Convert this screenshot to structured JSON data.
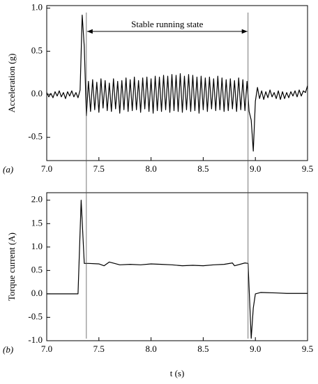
{
  "chart_data": [
    {
      "type": "line",
      "ylabel": "Acceleration (g)",
      "panel_label": "(a)",
      "color": "#000000",
      "xlim": [
        7.0,
        9.5
      ],
      "ylim": [
        -0.77,
        1.03
      ],
      "xticks": [
        {
          "value": 7.0,
          "label": "7.0"
        },
        {
          "value": 7.5,
          "label": "7.5"
        },
        {
          "value": 8.0,
          "label": "8.0"
        },
        {
          "value": 8.5,
          "label": "8.5"
        },
        {
          "value": 9.0,
          "label": "9.0"
        },
        {
          "value": 9.5,
          "label": "9.5"
        }
      ],
      "yticks": [
        {
          "value": -0.5,
          "label": "-0.5"
        },
        {
          "value": 0.0,
          "label": "0.0"
        },
        {
          "value": 0.5,
          "label": "0.5"
        },
        {
          "value": 1.0,
          "label": "1.0"
        }
      ],
      "vlines": [
        7.38,
        8.93
      ],
      "annotation": {
        "text": "Stable running state",
        "x": [
          7.38,
          8.93
        ],
        "y": 0.73
      },
      "x": [
        7.0,
        7.02,
        7.04,
        7.06,
        7.08,
        7.1,
        7.12,
        7.14,
        7.16,
        7.18,
        7.2,
        7.22,
        7.24,
        7.26,
        7.28,
        7.3,
        7.32,
        7.34,
        7.36,
        7.38,
        7.4,
        7.42,
        7.44,
        7.46,
        7.48,
        7.5,
        7.52,
        7.54,
        7.56,
        7.58,
        7.6,
        7.62,
        7.64,
        7.66,
        7.68,
        7.7,
        7.72,
        7.74,
        7.76,
        7.78,
        7.8,
        7.82,
        7.84,
        7.86,
        7.88,
        7.9,
        7.92,
        7.94,
        7.96,
        7.98,
        8.0,
        8.02,
        8.04,
        8.06,
        8.08,
        8.1,
        8.12,
        8.14,
        8.16,
        8.18,
        8.2,
        8.22,
        8.24,
        8.26,
        8.28,
        8.3,
        8.32,
        8.34,
        8.36,
        8.38,
        8.4,
        8.42,
        8.44,
        8.46,
        8.48,
        8.5,
        8.52,
        8.54,
        8.56,
        8.58,
        8.6,
        8.62,
        8.64,
        8.66,
        8.68,
        8.7,
        8.72,
        8.74,
        8.76,
        8.78,
        8.8,
        8.82,
        8.84,
        8.86,
        8.88,
        8.9,
        8.92,
        8.94,
        8.96,
        8.98,
        9.0,
        9.02,
        9.04,
        9.06,
        9.08,
        9.1,
        9.12,
        9.14,
        9.16,
        9.18,
        9.2,
        9.22,
        9.24,
        9.26,
        9.28,
        9.3,
        9.32,
        9.34,
        9.36,
        9.38,
        9.4,
        9.42,
        9.44,
        9.46,
        9.48,
        9.5
      ],
      "values": [
        0.02,
        -0.03,
        0.01,
        -0.04,
        0.03,
        -0.02,
        0.04,
        -0.03,
        0.02,
        -0.05,
        0.03,
        -0.02,
        0.04,
        -0.03,
        0.02,
        -0.04,
        0.05,
        0.92,
        0.55,
        -0.25,
        0.15,
        -0.2,
        0.17,
        -0.18,
        0.14,
        -0.21,
        0.18,
        -0.16,
        0.16,
        -0.19,
        0.13,
        -0.2,
        0.18,
        -0.17,
        0.15,
        -0.22,
        0.16,
        -0.18,
        0.19,
        -0.2,
        0.17,
        -0.19,
        0.2,
        -0.18,
        0.16,
        -0.21,
        0.19,
        -0.17,
        0.2,
        -0.2,
        0.18,
        -0.22,
        0.21,
        -0.19,
        0.2,
        -0.2,
        0.22,
        -0.18,
        0.21,
        -0.21,
        0.23,
        -0.19,
        0.22,
        -0.2,
        0.24,
        -0.21,
        0.21,
        -0.18,
        0.23,
        -0.2,
        0.22,
        -0.19,
        0.2,
        -0.22,
        0.21,
        -0.18,
        0.19,
        -0.2,
        0.2,
        -0.17,
        0.18,
        -0.19,
        0.21,
        -0.18,
        0.19,
        -0.2,
        0.17,
        -0.19,
        0.18,
        -0.17,
        0.16,
        -0.2,
        0.19,
        -0.18,
        0.17,
        -0.19,
        0.15,
        -0.2,
        -0.3,
        -0.66,
        -0.08,
        0.08,
        -0.05,
        0.04,
        -0.06,
        0.03,
        -0.04,
        0.05,
        -0.03,
        0.02,
        -0.05,
        0.04,
        -0.06,
        0.03,
        -0.05,
        0.02,
        -0.04,
        0.03,
        -0.02,
        0.04,
        -0.03,
        0.05,
        -0.02,
        0.04,
        0.02,
        0.1
      ]
    },
    {
      "type": "line",
      "xlabel": "t (s)",
      "ylabel": "Torque current (A)",
      "panel_label": "(b)",
      "color": "#000000",
      "xlim": [
        7.0,
        9.5
      ],
      "ylim": [
        -1.0,
        2.16
      ],
      "xticks": [
        {
          "value": 7.0,
          "label": "7.0"
        },
        {
          "value": 7.5,
          "label": "7.5"
        },
        {
          "value": 8.0,
          "label": "8.0"
        },
        {
          "value": 8.5,
          "label": "8.5"
        },
        {
          "value": 9.0,
          "label": "9.0"
        },
        {
          "value": 9.5,
          "label": "9.5"
        }
      ],
      "yticks": [
        {
          "value": -1.0,
          "label": "-1.0"
        },
        {
          "value": -0.5,
          "label": "-0.5"
        },
        {
          "value": 0.0,
          "label": "0.0"
        },
        {
          "value": 0.5,
          "label": "0.5"
        },
        {
          "value": 1.0,
          "label": "1.0"
        },
        {
          "value": 1.5,
          "label": "1.5"
        },
        {
          "value": 2.0,
          "label": "2.0"
        }
      ],
      "x": [
        7.0,
        7.3,
        7.33,
        7.36,
        7.4,
        7.5,
        7.55,
        7.6,
        7.7,
        7.8,
        7.9,
        8.0,
        8.1,
        8.2,
        8.3,
        8.4,
        8.5,
        8.6,
        8.7,
        8.78,
        8.8,
        8.9,
        8.93,
        8.96,
        8.98,
        9.0,
        9.05,
        9.2,
        9.3,
        9.4,
        9.5
      ],
      "values": [
        0.0,
        0.0,
        2.0,
        0.65,
        0.65,
        0.64,
        0.6,
        0.68,
        0.62,
        0.63,
        0.62,
        0.64,
        0.63,
        0.62,
        0.6,
        0.61,
        0.6,
        0.62,
        0.63,
        0.66,
        0.6,
        0.66,
        0.65,
        -0.95,
        -0.3,
        0.0,
        0.03,
        0.02,
        0.01,
        0.01,
        0.01
      ]
    }
  ]
}
